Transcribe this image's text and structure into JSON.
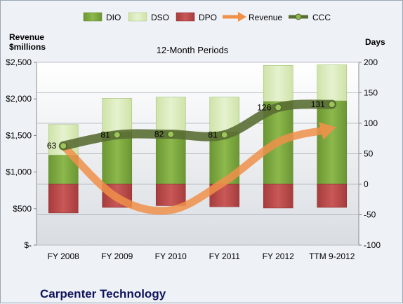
{
  "chart_data": {
    "type": "bar",
    "title": "12-Month Periods",
    "company": "Carpenter Technology",
    "left_axis_label_line1": "Revenue",
    "left_axis_label_line2": "$millions",
    "right_axis_label": "Days",
    "categories": [
      "FY 2008",
      "FY 2009",
      "FY 2010",
      "FY 2011",
      "FY 2012",
      "TTM 9-2012"
    ],
    "left_axis": {
      "min": 0,
      "max": 2500,
      "ticks": [
        0,
        500,
        1000,
        1500,
        2000,
        2500
      ],
      "tick_labels": [
        "$-",
        "$500",
        "$1,000",
        "$1,500",
        "$2,000",
        "$2,500"
      ]
    },
    "right_axis": {
      "min": -100,
      "max": 200,
      "ticks": [
        -100,
        -50,
        0,
        50,
        100,
        150,
        200
      ],
      "tick_labels": [
        "-100",
        "-50",
        "0",
        "50",
        "100",
        "150",
        "200"
      ]
    },
    "series": [
      {
        "name": "DIO",
        "kind": "stacked-bar",
        "axis": "right",
        "color": "#77a33c",
        "values": [
          48,
          86,
          87,
          86,
          136,
          137
        ]
      },
      {
        "name": "DSO",
        "kind": "stacked-bar",
        "axis": "right",
        "color": "#d7e9b5",
        "values": [
          50,
          55,
          56,
          57,
          59,
          59
        ]
      },
      {
        "name": "DPO",
        "kind": "stacked-bar-negative",
        "axis": "right",
        "color": "#b94a4a",
        "values": [
          -47,
          -38,
          -35,
          -37,
          -39,
          -38
        ]
      },
      {
        "name": "Revenue",
        "kind": "arrow-line",
        "axis": "left",
        "color": "#f0914a",
        "values": [
          1360,
          650,
          480,
          870,
          1410,
          1600
        ]
      },
      {
        "name": "CCC",
        "kind": "line",
        "axis": "right",
        "color": "#5a6e34",
        "values": [
          63,
          81,
          82,
          81,
          126,
          131
        ],
        "data_labels": [
          "63",
          "81",
          "82",
          "81",
          "126",
          "131"
        ]
      }
    ],
    "legend_position": "top",
    "grid": true
  }
}
